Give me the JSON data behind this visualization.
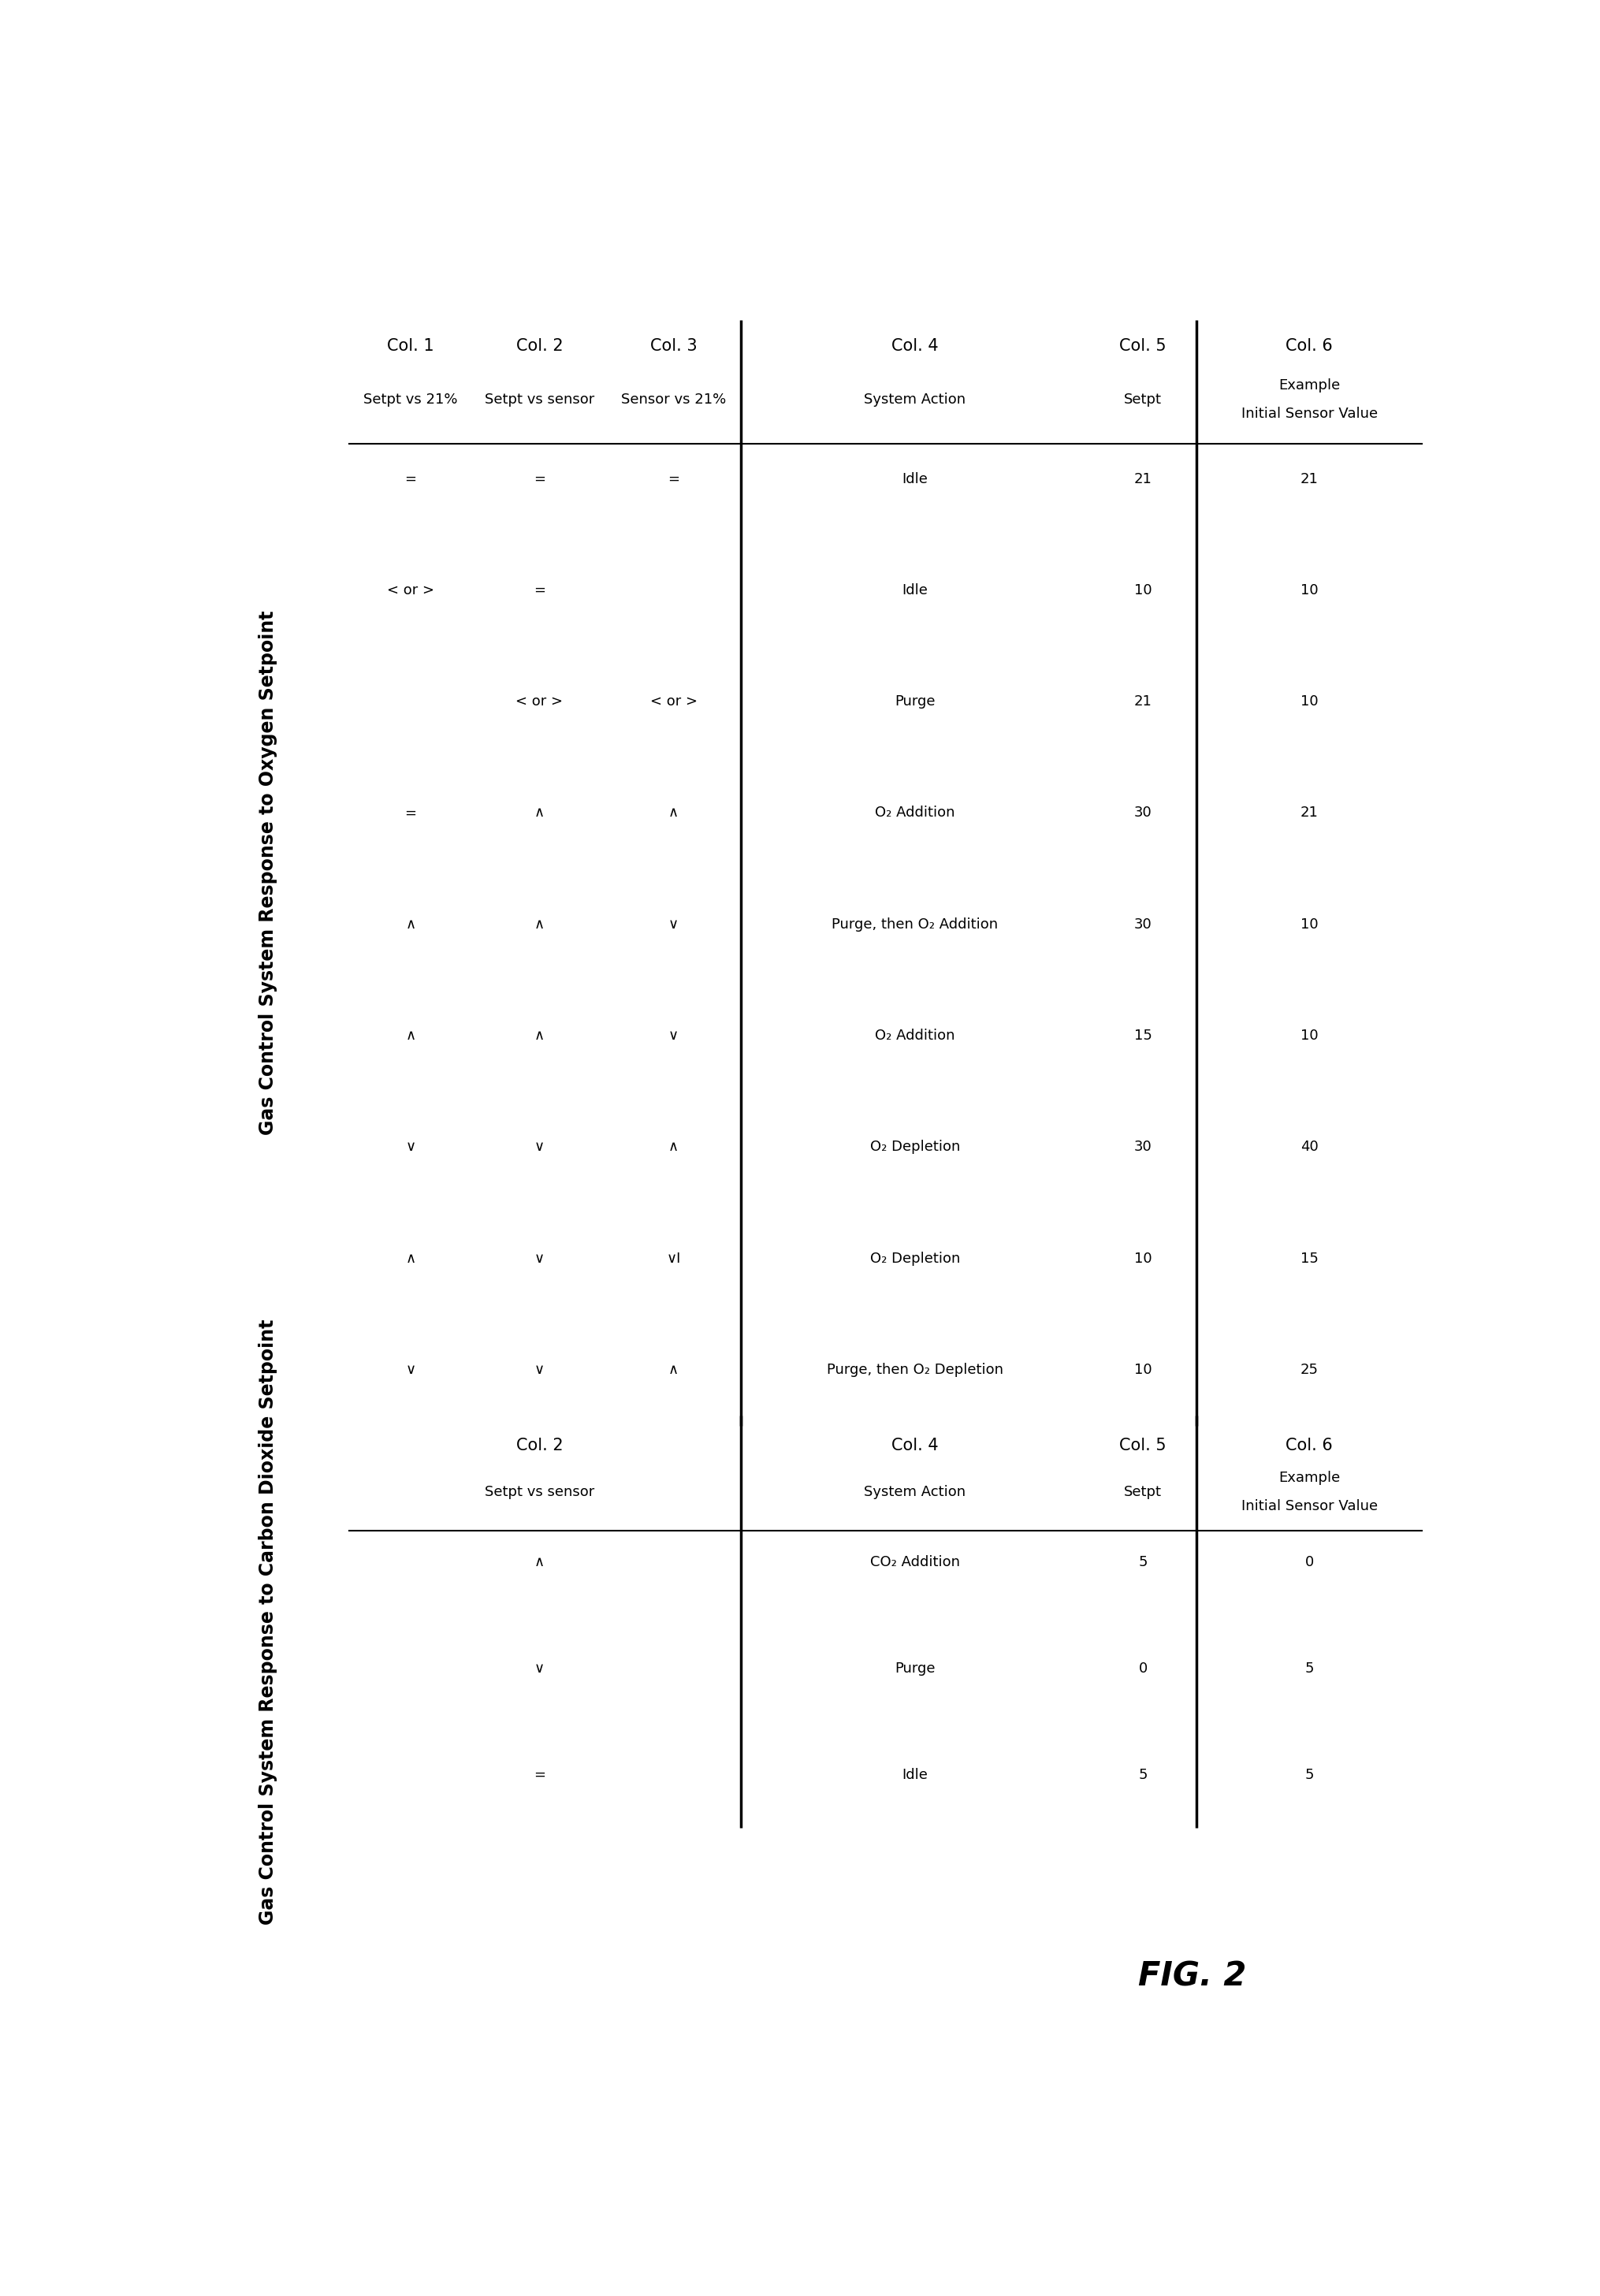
{
  "title1": "Gas Control System Response to Oxygen Setpoint",
  "title2": "Gas Control System Response to Carbon Dioxide Setpoint",
  "fig_label": "FIG. 2",
  "bg_color": "#ffffff",
  "table1": {
    "col_headers": [
      "Col. 1",
      "Col. 2",
      "Col. 3",
      "Col. 4",
      "Col. 5",
      "Col. 6"
    ],
    "sub_headers": [
      "Setpt vs 21%",
      "Setpt vs sensor",
      "Sensor vs 21%",
      "System Action",
      "Setpt",
      "Example\nInitial Sensor Value"
    ],
    "rows": [
      [
        "=",
        "=",
        "=",
        "Idle",
        "21",
        "21"
      ],
      [
        "< or >",
        "=",
        "",
        "Idle",
        "10",
        "10"
      ],
      [
        "",
        "< or >",
        "< or >",
        "Purge",
        "21",
        "10"
      ],
      [
        "=",
        "∧",
        "∧",
        "O₂ Addition",
        "30",
        "21"
      ],
      [
        "∧",
        "∧",
        "∨",
        "Purge, then O₂ Addition",
        "30",
        "10"
      ],
      [
        "∧",
        "∧",
        "∨",
        "O₂ Addition",
        "15",
        "10"
      ],
      [
        "∨",
        "∨",
        "∧",
        "O₂ Depletion",
        "30",
        "40"
      ],
      [
        "∧",
        "∨",
        "∨I",
        "O₂ Depletion",
        "10",
        "15"
      ],
      [
        "∨",
        "∨",
        "∧",
        "Purge, then O₂ Depletion",
        "10",
        "25"
      ]
    ]
  },
  "table2": {
    "col_headers": [
      "Col. 2",
      "Col. 4",
      "Col. 5",
      "Col. 6"
    ],
    "sub_headers": [
      "Setpt vs sensor",
      "System Action",
      "Setpt",
      "Example\nInitial Sensor Value"
    ],
    "rows": [
      [
        "∧",
        "CO₂ Addition",
        "5",
        "0"
      ],
      [
        "∨",
        "Purge",
        "0",
        "5"
      ],
      [
        "=",
        "Idle",
        "5",
        "5"
      ]
    ]
  }
}
